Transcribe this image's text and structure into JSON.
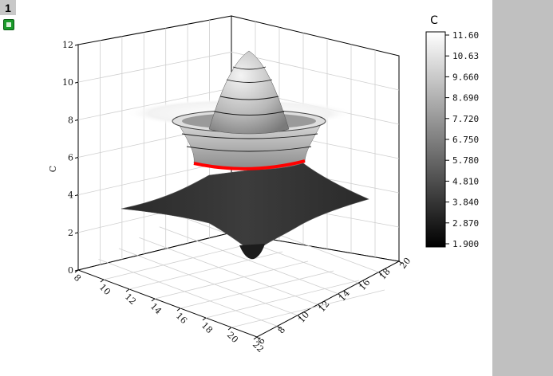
{
  "page": {
    "tab_label": "1"
  },
  "chart_data": {
    "type": "surface3d",
    "zlabel": "C",
    "zlim": [
      0,
      12
    ],
    "z_ticks": [
      "0",
      "2",
      "4",
      "6",
      "8",
      "10",
      "12"
    ],
    "x_ticks": [
      "8",
      "10",
      "12",
      "14",
      "16",
      "18",
      "20",
      "22"
    ],
    "y_ticks": [
      "6",
      "8",
      "10",
      "12",
      "14",
      "16",
      "18",
      "20"
    ],
    "highlight_contour": {
      "z": 4.8,
      "color": "#ff0000"
    },
    "colorbar": {
      "title": "C",
      "min": 1.9,
      "max": 11.6,
      "ticks": [
        "11.60",
        "10.63",
        "9.660",
        "8.690",
        "7.720",
        "6.750",
        "5.780",
        "4.810",
        "3.840",
        "2.870",
        "1.900"
      ],
      "colors": [
        "#000000",
        "#ffffff"
      ]
    }
  }
}
